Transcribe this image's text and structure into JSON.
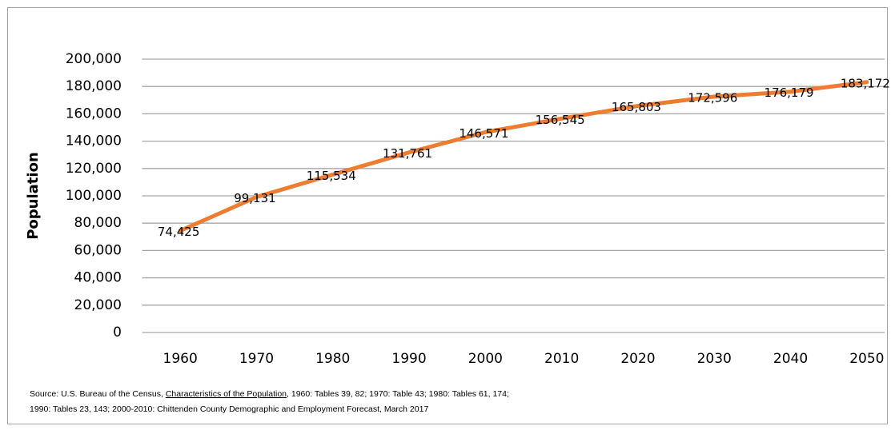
{
  "chart_data": {
    "type": "line",
    "y_label": "Population",
    "categories": [
      "1960",
      "1970",
      "1980",
      "1990",
      "2000",
      "2010",
      "2020",
      "2030",
      "2040",
      "2050"
    ],
    "series": [
      {
        "name": "Population",
        "color": "#ed7d31",
        "values": [
          74425,
          99131,
          115534,
          131761,
          146571,
          156545,
          165803,
          172596,
          176179,
          183172
        ],
        "value_labels": [
          "74,425",
          "99,131",
          "115,534",
          "131,761",
          "146,571",
          "156,545",
          "165,803",
          "172,596",
          "176,179",
          "183,172"
        ]
      }
    ],
    "ylim": [
      0,
      200000
    ],
    "yticks": [
      {
        "value": 0,
        "label": "0"
      },
      {
        "value": 20000,
        "label": "20,000"
      },
      {
        "value": 40000,
        "label": "40,000"
      },
      {
        "value": 60000,
        "label": "60,000"
      },
      {
        "value": 80000,
        "label": "80,000"
      },
      {
        "value": 100000,
        "label": "100,000"
      },
      {
        "value": 120000,
        "label": "120,000"
      },
      {
        "value": 140000,
        "label": "140,000"
      },
      {
        "value": 160000,
        "label": "160,000"
      },
      {
        "value": 180000,
        "label": "180,000"
      },
      {
        "value": 200000,
        "label": "200,000"
      }
    ],
    "grid": true,
    "note": {
      "line1_start": "Source: U.S. Bureau of the Census, ",
      "line1_underlined": "Characteristics of the Population",
      "line1_end": ", 1960: Tables 39, 82; 1970: Table 43; 1980: Tables 61, 174;",
      "line2": "1990: Tables 23, 143; 2000-2010: Chittenden County Demographic and Employment Forecast, March 2017"
    }
  }
}
